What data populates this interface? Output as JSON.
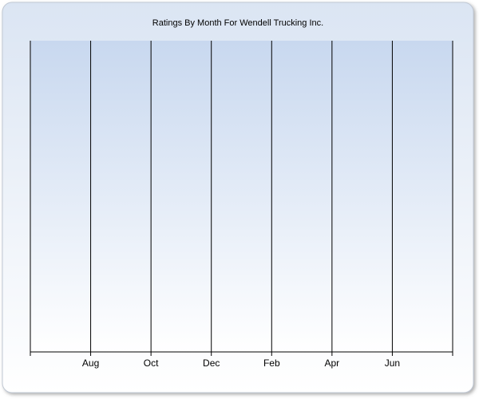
{
  "chart_data": {
    "type": "line",
    "title": "Ratings By Month For Wendell Trucking Inc.",
    "categories": [
      null,
      "Aug",
      "Oct",
      "Dec",
      "Feb",
      "Apr",
      "Jun",
      null
    ],
    "grid": true,
    "gridColor": "#000000"
  }
}
